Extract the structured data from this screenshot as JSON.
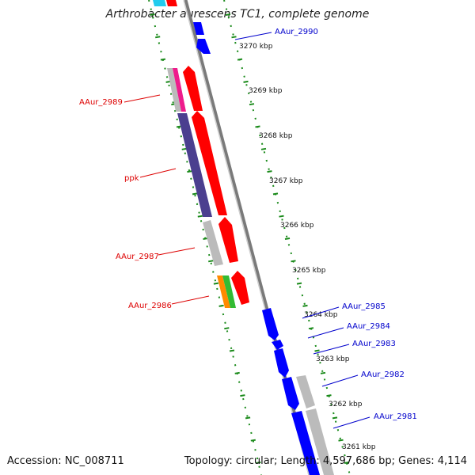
{
  "title": "Arthrobacter aurescens TC1, complete genome",
  "accession_text": "Accession: NC_008711",
  "summary_text": "Topology: circular; Length: 4,597,686 bp; Genes: 4,114",
  "colors": {
    "backbone": "#888888",
    "ruler": "#1a8a1a",
    "forward_gene": "#ff0000",
    "reverse_gene": "#0000ff",
    "forward_label": "#dd0000",
    "reverse_label": "#0000cc",
    "grey_feature": "#bbbbbb",
    "ppk_feature": "#4b3f8f",
    "pink_feature": "#ee1c8c",
    "orange_feature": "#ff8a00",
    "green_feature": "#33bb33",
    "cyan_feature": "#22ccee"
  },
  "ruler_ticks": [
    "3270 kbp",
    "3269 kbp",
    "3268 kbp",
    "3267 kbp",
    "3266 kbp",
    "3265 kbp",
    "3264 kbp",
    "3263 kbp",
    "3262 kbp",
    "3261 kbp"
  ],
  "forward_labels": [
    "AAur_2989",
    "ppk",
    "AAur_2987",
    "AAur_2986"
  ],
  "reverse_labels": [
    "AAur_2990",
    "AAur_2985",
    "AAur_2984",
    "AAur_2983",
    "AAur_2982",
    "AAur_2981"
  ]
}
